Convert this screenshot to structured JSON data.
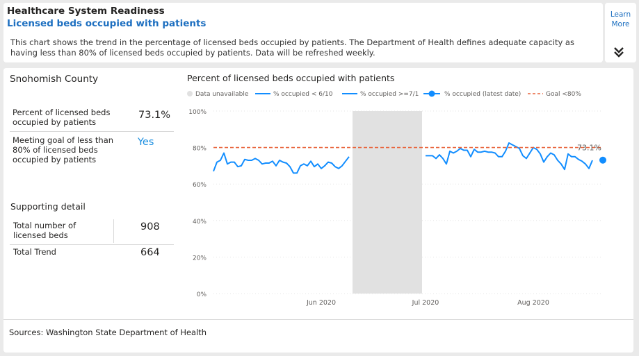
{
  "header": {
    "title": "Healthcare System Readiness",
    "subtitle": "Licensed beds occupied with patients",
    "description": "This chart shows the trend in the percentage of licensed beds occupied by patients. The Department of Health defines adequate capacity as having less than 80% of licensed beds occupied by patients. Data will be refreshed weekly."
  },
  "learn_more": {
    "line1": "Learn",
    "line2": "More",
    "icon": "double-chevron-down-icon"
  },
  "summary": {
    "county": "Snohomish County",
    "pct_label": "Percent of licensed beds occupied by patients",
    "pct_value": "73.1%",
    "goal_label": "Meeting goal of less than 80% of licensed beds occupied by patients",
    "goal_value": "Yes",
    "supporting_title": "Supporting detail",
    "total_beds_label": "Total number of licensed beds",
    "total_beds_value": "908",
    "total_trend_label": "Total Trend",
    "total_trend_value": "664"
  },
  "sources": "Sources: Washington State Department of Health",
  "colors": {
    "accent": "#1d6fc0",
    "line": "#118dff",
    "goal": "#e8643c",
    "unavailable": "#e1e1e1"
  },
  "chart_data": {
    "type": "line",
    "title": "Percent of licensed beds occupied with patients",
    "legend": [
      {
        "name": "Data unavailable"
      },
      {
        "name": "% occupied < 6/10"
      },
      {
        "name": "% occupied >=7/1"
      },
      {
        "name": "% occupied (latest date)"
      },
      {
        "name": "Goal <80%"
      }
    ],
    "legend_placement": "top",
    "ylim": [
      0,
      100
    ],
    "yticks": [
      "0%",
      "20%",
      "40%",
      "60%",
      "80%",
      "100%"
    ],
    "xticks": [
      {
        "label": "Jun 2020",
        "x": "2020-06-01"
      },
      {
        "label": "Jul 2020",
        "x": "2020-07-01"
      },
      {
        "label": "Aug 2020",
        "x": "2020-08-01"
      }
    ],
    "xrange": [
      "2020-05-01",
      "2020-08-21"
    ],
    "unavailable_range": [
      "2020-06-10",
      "2020-06-30"
    ],
    "goal": 80,
    "latest_label": "73.1%",
    "series": [
      {
        "name": "% occupied < 6/10",
        "points": [
          [
            "2020-05-01",
            67
          ],
          [
            "2020-05-02",
            72
          ],
          [
            "2020-05-03",
            73
          ],
          [
            "2020-05-04",
            77
          ],
          [
            "2020-05-05",
            71
          ],
          [
            "2020-05-06",
            72
          ],
          [
            "2020-05-07",
            72
          ],
          [
            "2020-05-08",
            69.5
          ],
          [
            "2020-05-09",
            70
          ],
          [
            "2020-05-10",
            73.5
          ],
          [
            "2020-05-11",
            73
          ],
          [
            "2020-05-12",
            73
          ],
          [
            "2020-05-13",
            74
          ],
          [
            "2020-05-14",
            73
          ],
          [
            "2020-05-15",
            71
          ],
          [
            "2020-05-16",
            71.5
          ],
          [
            "2020-05-17",
            71.5
          ],
          [
            "2020-05-18",
            72.5
          ],
          [
            "2020-05-19",
            70
          ],
          [
            "2020-05-20",
            73
          ],
          [
            "2020-05-21",
            72
          ],
          [
            "2020-05-22",
            71.5
          ],
          [
            "2020-05-23",
            69.5
          ],
          [
            "2020-05-24",
            66
          ],
          [
            "2020-05-25",
            66
          ],
          [
            "2020-05-26",
            70
          ],
          [
            "2020-05-27",
            71
          ],
          [
            "2020-05-28",
            70
          ],
          [
            "2020-05-29",
            72.5
          ],
          [
            "2020-05-30",
            69.5
          ],
          [
            "2020-05-31",
            71
          ],
          [
            "2020-06-01",
            68.5
          ],
          [
            "2020-06-02",
            70
          ],
          [
            "2020-06-03",
            72
          ],
          [
            "2020-06-04",
            71.5
          ],
          [
            "2020-06-05",
            69.5
          ],
          [
            "2020-06-06",
            68.5
          ],
          [
            "2020-06-07",
            70
          ],
          [
            "2020-06-08",
            72.5
          ],
          [
            "2020-06-09",
            75
          ]
        ]
      },
      {
        "name": "% occupied >=7/1",
        "points": [
          [
            "2020-07-01",
            75.5
          ],
          [
            "2020-07-02",
            75.5
          ],
          [
            "2020-07-03",
            75.5
          ],
          [
            "2020-07-04",
            74
          ],
          [
            "2020-07-05",
            76
          ],
          [
            "2020-07-06",
            74
          ],
          [
            "2020-07-07",
            71
          ],
          [
            "2020-07-08",
            78
          ],
          [
            "2020-07-09",
            77
          ],
          [
            "2020-07-10",
            78
          ],
          [
            "2020-07-11",
            79.5
          ],
          [
            "2020-07-12",
            78.5
          ],
          [
            "2020-07-13",
            78.5
          ],
          [
            "2020-07-14",
            75
          ],
          [
            "2020-07-15",
            79
          ],
          [
            "2020-07-16",
            77.5
          ],
          [
            "2020-07-17",
            77.5
          ],
          [
            "2020-07-18",
            78
          ],
          [
            "2020-07-19",
            77.5
          ],
          [
            "2020-07-20",
            77.5
          ],
          [
            "2020-07-21",
            77
          ],
          [
            "2020-07-22",
            75
          ],
          [
            "2020-07-23",
            75
          ],
          [
            "2020-07-24",
            78
          ],
          [
            "2020-07-25",
            82.5
          ],
          [
            "2020-07-26",
            81.5
          ],
          [
            "2020-07-27",
            80.5
          ],
          [
            "2020-07-28",
            79.5
          ],
          [
            "2020-07-29",
            75.5
          ],
          [
            "2020-07-30",
            74
          ],
          [
            "2020-07-31",
            77
          ],
          [
            "2020-08-01",
            80
          ],
          [
            "2020-08-02",
            79
          ],
          [
            "2020-08-03",
            76.5
          ],
          [
            "2020-08-04",
            72
          ],
          [
            "2020-08-05",
            75
          ],
          [
            "2020-08-06",
            77
          ],
          [
            "2020-08-07",
            76
          ],
          [
            "2020-08-08",
            73
          ],
          [
            "2020-08-09",
            71
          ],
          [
            "2020-08-10",
            68
          ],
          [
            "2020-08-11",
            76.5
          ],
          [
            "2020-08-12",
            75
          ],
          [
            "2020-08-13",
            75
          ],
          [
            "2020-08-14",
            73.5
          ],
          [
            "2020-08-15",
            72.5
          ],
          [
            "2020-08-16",
            71
          ],
          [
            "2020-08-17",
            68.5
          ],
          [
            "2020-08-18",
            73
          ]
        ]
      }
    ],
    "latest_point": [
      "2020-08-21",
      73.1
    ]
  }
}
